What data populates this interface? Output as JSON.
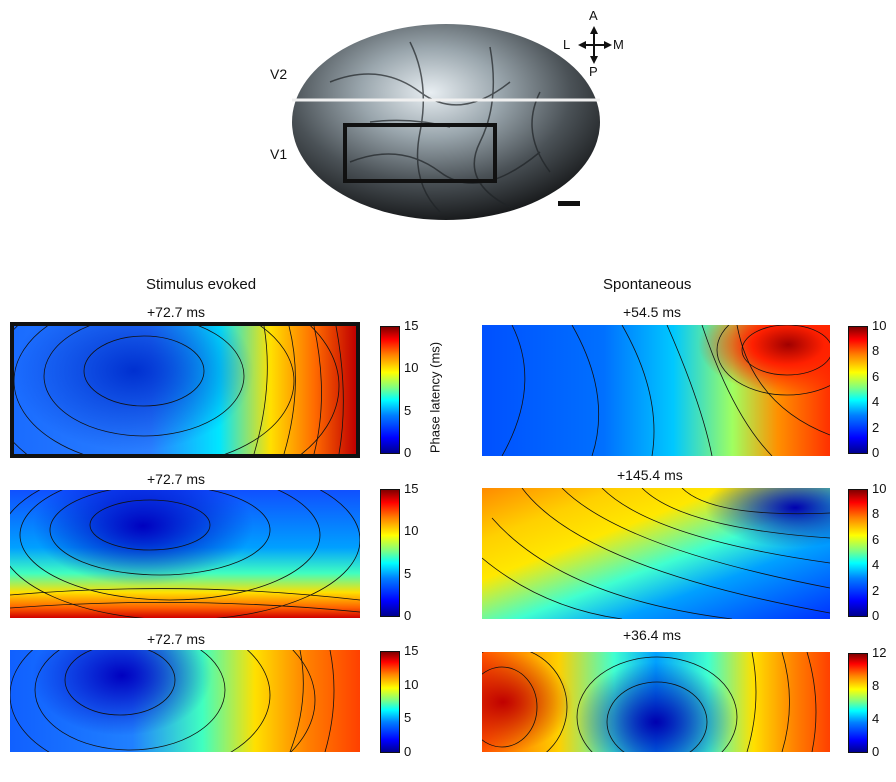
{
  "brain": {
    "label_v2": "V2",
    "label_v1": "V1",
    "compass": {
      "a": "A",
      "p": "P",
      "l": "L",
      "m": "M"
    }
  },
  "columns": {
    "left_title": "Stimulus evoked",
    "right_title": "Spontaneous"
  },
  "panels": [
    {
      "label": "+72.7 ms"
    },
    {
      "label": "+54.5 ms"
    },
    {
      "label": "+72.7 ms"
    },
    {
      "label": "+145.4 ms"
    },
    {
      "label": "+72.7 ms"
    },
    {
      "label": "+36.4 ms"
    }
  ],
  "colorbars": {
    "ylabel": "Phase latency (ms)",
    "left_ticks": [
      "15",
      "10",
      "5",
      "0"
    ],
    "right_ticks_1": [
      "10",
      "8",
      "6",
      "4",
      "2",
      "0"
    ],
    "right_ticks_2": [
      "10",
      "8",
      "6",
      "4",
      "2",
      "0"
    ],
    "right_ticks_3": [
      "12",
      "8",
      "4",
      "0"
    ]
  },
  "colors": {
    "jet": [
      "#00008f",
      "#0000ff",
      "#0080ff",
      "#00ffff",
      "#80ff80",
      "#ffff00",
      "#ff8000",
      "#ff0000",
      "#800000"
    ]
  }
}
